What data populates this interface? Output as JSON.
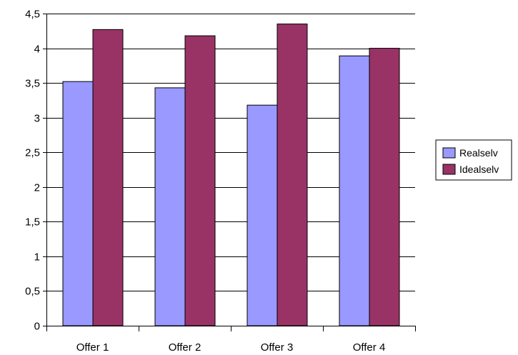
{
  "chart_data": {
    "type": "bar",
    "title": "",
    "xlabel": "",
    "ylabel": "",
    "categories": [
      "Offer 1",
      "Offer 2",
      "Offer 3",
      "Offer 4"
    ],
    "series": [
      {
        "name": "Realselv",
        "values": [
          3.52,
          3.43,
          3.18,
          3.89
        ],
        "color": "#9999ff"
      },
      {
        "name": "Idealselv",
        "values": [
          4.27,
          4.18,
          4.35,
          4.0
        ],
        "color": "#993366"
      }
    ],
    "ylim": [
      0,
      4.5
    ],
    "yticks": [
      "0",
      "0,5",
      "1",
      "1,5",
      "2",
      "2,5",
      "3",
      "3,5",
      "4",
      "4,5"
    ],
    "grid": true,
    "legend_position": "right"
  }
}
